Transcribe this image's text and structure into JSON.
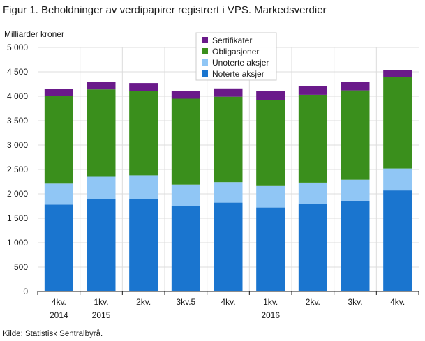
{
  "figure": {
    "title": "Figur 1. Beholdninger av verdipapirer registrert i VPS. Markedsverdier",
    "source": "Kilde: Statistisk Sentralbyrå."
  },
  "chart_data": {
    "type": "bar",
    "stacked": true,
    "unit_label": "Milliarder  kroner",
    "ylim": [
      0,
      5000
    ],
    "yticks": [
      "0",
      "500",
      "1 000",
      "1 500",
      "2 000",
      "2 500",
      "3 000",
      "3 500",
      "4 000",
      "4 500",
      "5 000"
    ],
    "ytick_values": [
      0,
      500,
      1000,
      1500,
      2000,
      2500,
      3000,
      3500,
      4000,
      4500,
      5000
    ],
    "grid": true,
    "legend_position": "top-center",
    "categories": [
      [
        "4kv.",
        "2014"
      ],
      [
        "1kv.",
        "2015"
      ],
      [
        "2kv.",
        ""
      ],
      [
        "3kv.5",
        ""
      ],
      [
        "4kv.",
        ""
      ],
      [
        "1kv.",
        "2016"
      ],
      [
        "2kv.",
        ""
      ],
      [
        "3kv.",
        ""
      ],
      [
        "4kv.",
        ""
      ]
    ],
    "series": [
      {
        "name": "Noterte aksjer",
        "color": "#1a75cf",
        "values": [
          1780,
          1900,
          1900,
          1750,
          1820,
          1720,
          1800,
          1860,
          2070
        ]
      },
      {
        "name": "Unoterte aksjer",
        "color": "#90c6f5",
        "values": [
          430,
          450,
          480,
          440,
          420,
          440,
          430,
          430,
          450
        ]
      },
      {
        "name": "Obligasjoner",
        "color": "#3a8f1c",
        "values": [
          1800,
          1790,
          1720,
          1760,
          1750,
          1760,
          1800,
          1830,
          1870
        ]
      },
      {
        "name": "Sertifikater",
        "color": "#6a1a8a",
        "values": [
          140,
          150,
          170,
          150,
          170,
          180,
          180,
          170,
          150
        ]
      }
    ],
    "legend_order": [
      "Sertifikater",
      "Obligasjoner",
      "Unoterte aksjer",
      "Noterte aksjer"
    ]
  }
}
